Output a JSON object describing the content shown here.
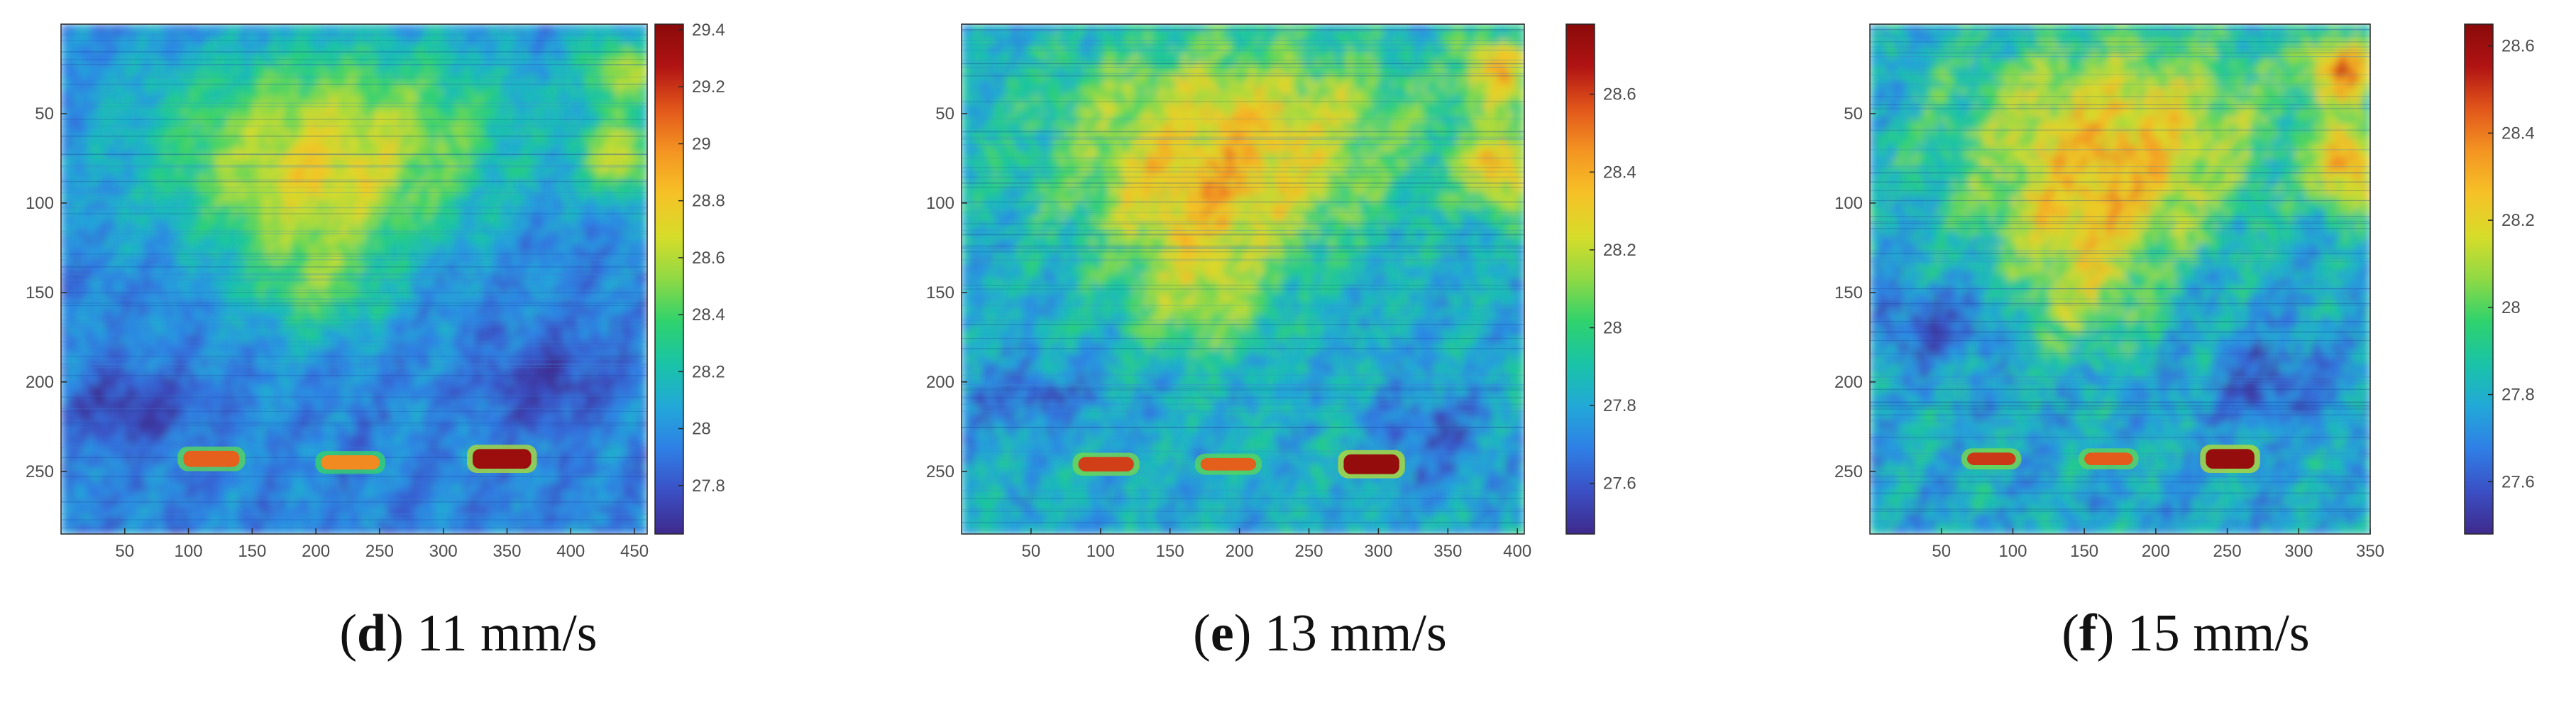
{
  "colormap": [
    "#3e2a8c",
    "#3b4fc4",
    "#2f7fe6",
    "#22a8d8",
    "#19c3a7",
    "#2fd26d",
    "#8fd944",
    "#d6dc2a",
    "#f6c227",
    "#f49522",
    "#e2571b",
    "#b11313",
    "#8a0a0a"
  ],
  "chart_data": [
    {
      "type": "heatmap",
      "caption": {
        "letter": "d",
        "text": "11 mm/s"
      },
      "xlim": [
        0,
        460
      ],
      "ylim": [
        0,
        285
      ],
      "xticks": [
        50,
        100,
        150,
        200,
        250,
        300,
        350,
        400,
        450
      ],
      "yticks": [
        50,
        100,
        150,
        200,
        250
      ],
      "clim": [
        27.63,
        29.42
      ],
      "cticks": [
        27.8,
        28,
        28.2,
        28.4,
        28.6,
        28.8,
        29,
        29.2,
        29.4
      ],
      "background": 27.95,
      "blobs": [
        {
          "x": 220,
          "y": 50,
          "rx": 190,
          "ry": 55,
          "v": 0.55
        },
        {
          "x": 200,
          "y": 95,
          "rx": 150,
          "ry": 45,
          "v": 0.52
        },
        {
          "x": 200,
          "y": 145,
          "rx": 80,
          "ry": 40,
          "v": 0.45
        },
        {
          "x": 440,
          "y": 75,
          "rx": 40,
          "ry": 30,
          "v": 0.65
        },
        {
          "x": 440,
          "y": 25,
          "rx": 40,
          "ry": 25,
          "v": 0.6
        },
        {
          "x": 60,
          "y": 215,
          "rx": 70,
          "ry": 25,
          "v": -0.25
        },
        {
          "x": 380,
          "y": 200,
          "rx": 60,
          "ry": 30,
          "v": -0.25
        }
      ],
      "hot_spots": [
        {
          "x": 118,
          "y": 243,
          "w": 44,
          "h": 9,
          "v": 29.1
        },
        {
          "x": 227,
          "y": 245,
          "w": 46,
          "h": 8,
          "v": 29.0
        },
        {
          "x": 346,
          "y": 243,
          "w": 46,
          "h": 11,
          "v": 29.35
        }
      ]
    },
    {
      "type": "heatmap",
      "caption": {
        "letter": "e",
        "text": "13 mm/s"
      },
      "xlim": [
        0,
        405
      ],
      "ylim": [
        0,
        285
      ],
      "xticks": [
        50,
        100,
        150,
        200,
        250,
        300,
        350,
        400
      ],
      "yticks": [
        50,
        100,
        150,
        200,
        250
      ],
      "clim": [
        27.47,
        28.78
      ],
      "cticks": [
        27.6,
        27.8,
        28,
        28.2,
        28.4,
        28.6
      ],
      "background": 27.82,
      "blobs": [
        {
          "x": 200,
          "y": 50,
          "rx": 170,
          "ry": 55,
          "v": 0.42
        },
        {
          "x": 180,
          "y": 100,
          "rx": 130,
          "ry": 45,
          "v": 0.38
        },
        {
          "x": 170,
          "y": 150,
          "rx": 70,
          "ry": 45,
          "v": 0.32
        },
        {
          "x": 390,
          "y": 80,
          "rx": 35,
          "ry": 30,
          "v": 0.55
        },
        {
          "x": 385,
          "y": 25,
          "rx": 35,
          "ry": 25,
          "v": 0.5
        },
        {
          "x": 50,
          "y": 210,
          "rx": 60,
          "ry": 25,
          "v": -0.2
        },
        {
          "x": 340,
          "y": 230,
          "rx": 50,
          "ry": 35,
          "v": -0.2
        }
      ],
      "hot_spots": [
        {
          "x": 104,
          "y": 246,
          "w": 40,
          "h": 8,
          "v": 28.6
        },
        {
          "x": 192,
          "y": 246,
          "w": 40,
          "h": 7,
          "v": 28.55
        },
        {
          "x": 295,
          "y": 246,
          "w": 40,
          "h": 11,
          "v": 28.75
        }
      ]
    },
    {
      "type": "heatmap",
      "caption": {
        "letter": "f",
        "text": "15 mm/s"
      },
      "xlim": [
        0,
        350
      ],
      "ylim": [
        0,
        285
      ],
      "xticks": [
        50,
        100,
        150,
        200,
        250,
        300,
        350
      ],
      "yticks": [
        50,
        100,
        150,
        200,
        250
      ],
      "clim": [
        27.48,
        28.65
      ],
      "cticks": [
        27.6,
        27.8,
        28,
        28.2,
        28.4,
        28.6
      ],
      "background": 27.78,
      "blobs": [
        {
          "x": 175,
          "y": 50,
          "rx": 150,
          "ry": 55,
          "v": 0.4
        },
        {
          "x": 160,
          "y": 100,
          "rx": 110,
          "ry": 45,
          "v": 0.36
        },
        {
          "x": 150,
          "y": 150,
          "rx": 60,
          "ry": 45,
          "v": 0.3
        },
        {
          "x": 335,
          "y": 80,
          "rx": 30,
          "ry": 30,
          "v": 0.55
        },
        {
          "x": 330,
          "y": 25,
          "rx": 30,
          "ry": 25,
          "v": 0.55
        },
        {
          "x": 40,
          "y": 170,
          "rx": 50,
          "ry": 25,
          "v": -0.22
        },
        {
          "x": 280,
          "y": 200,
          "rx": 50,
          "ry": 30,
          "v": -0.2
        }
      ],
      "hot_spots": [
        {
          "x": 85,
          "y": 243,
          "w": 34,
          "h": 7,
          "v": 28.5
        },
        {
          "x": 167,
          "y": 243,
          "w": 34,
          "h": 7,
          "v": 28.45
        },
        {
          "x": 252,
          "y": 243,
          "w": 34,
          "h": 11,
          "v": 28.62
        }
      ]
    }
  ]
}
